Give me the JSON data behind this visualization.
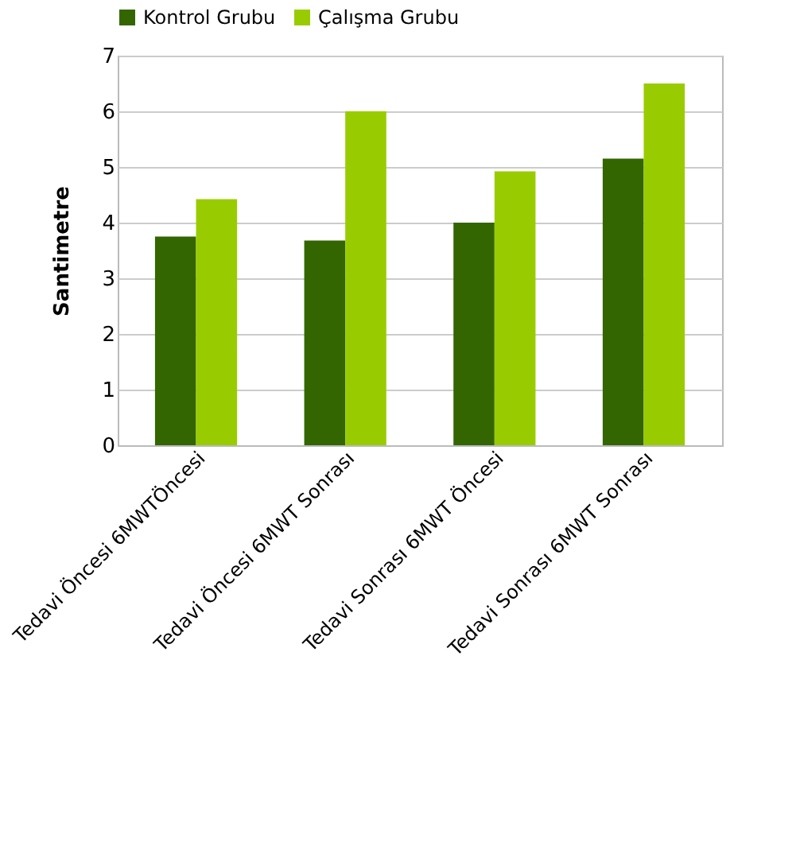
{
  "chart_data": {
    "type": "bar",
    "ylabel": "Santimetre",
    "categories": [
      "Tedavi Öncesi 6MWTÖncesi",
      "Tedavi Öncesi 6MWT Sonrası",
      "Tedavi Sonrası 6MWT Öncesi",
      "Tedavi Sonrası 6MWT Sonrası"
    ],
    "series": [
      {
        "name": "Kontrol Grubu",
        "color": "#336600",
        "values": [
          3.75,
          3.68,
          4.0,
          5.15
        ]
      },
      {
        "name": "Çalışma Grubu",
        "color": "#99cc00",
        "values": [
          4.42,
          6.0,
          4.92,
          6.5
        ]
      }
    ],
    "ylim": [
      0,
      7
    ],
    "yticks": [
      0,
      1,
      2,
      3,
      4,
      5,
      6,
      7
    ],
    "grid": "y",
    "legend": "top"
  }
}
